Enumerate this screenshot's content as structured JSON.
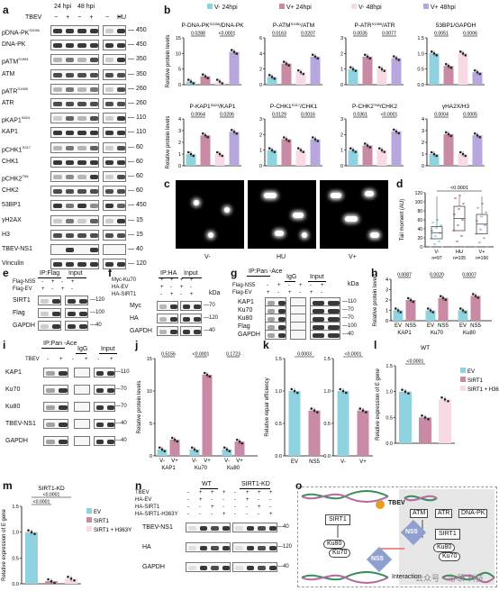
{
  "panels": {
    "a": "a",
    "b": "b",
    "c": "c",
    "d": "d",
    "e": "e",
    "f": "f",
    "g": "g",
    "h": "h",
    "i": "i",
    "j": "j",
    "k": "k",
    "l": "l",
    "m": "m",
    "n": "n",
    "o": "o"
  },
  "panel_a": {
    "header": {
      "tbev": "TBEV",
      "hpi24": "24 hpi",
      "hpi48": "48 hpi",
      "hu": "HU",
      "minus": "−",
      "plus": "+"
    },
    "rows": [
      {
        "name": "pDNA-PK",
        "sup": "S2056",
        "kda": "450"
      },
      {
        "name": "DNA-PK",
        "sup": "",
        "kda": "450"
      },
      {
        "name": "pATM",
        "sup": "S1981",
        "kda": "350"
      },
      {
        "name": "ATM",
        "sup": "",
        "kda": "350"
      },
      {
        "name": "pATR",
        "sup": "S1989",
        "kda": "260"
      },
      {
        "name": "ATR",
        "sup": "",
        "kda": "260"
      },
      {
        "name": "pKAP1",
        "sup": "S824",
        "kda": "110"
      },
      {
        "name": "KAP1",
        "sup": "",
        "kda": "110"
      },
      {
        "name": "pCHK1",
        "sup": "S317",
        "kda": "60"
      },
      {
        "name": "CHK1",
        "sup": "",
        "kda": "60"
      },
      {
        "name": "pCHK2",
        "sup": "T68",
        "kda": "60"
      },
      {
        "name": "CHK2",
        "sup": "",
        "kda": "60"
      },
      {
        "name": "53BP1",
        "sup": "",
        "kda": "450"
      },
      {
        "name": "γH2AX",
        "sup": "",
        "kda": "15"
      },
      {
        "name": "H3",
        "sup": "",
        "kda": "15"
      },
      {
        "name": "TBEV-NS1",
        "sup": "",
        "kda": "40"
      },
      {
        "name": "Vinculin",
        "sup": "",
        "kda": "120"
      }
    ]
  },
  "panel_b": {
    "legend": [
      "V- 24hpi",
      "V+ 24hpi",
      "V- 48hpi",
      "V+ 48hpi"
    ],
    "ylabel": "Relative protein levels",
    "charts": [
      {
        "title": "P-DNA-PK",
        "tsup": "S2056",
        "tsuf": "/DNA-PK",
        "p1": "0.0288",
        "p2": "<0.0001",
        "ymax": 15,
        "ticks": [
          "0",
          "5",
          "10",
          "15"
        ],
        "values": [
          1.0,
          2.7,
          1.0,
          10.5
        ]
      },
      {
        "title": "P-ATM",
        "tsup": "S1981",
        "tsuf": "/ATM",
        "p1": "0.0163",
        "p2": "0.0207",
        "ymax": 6,
        "ticks": [
          "0",
          "2",
          "4",
          "6"
        ],
        "values": [
          1.0,
          2.7,
          1.6,
          3.6
        ]
      },
      {
        "title": "P-ATR",
        "tsup": "S1989",
        "tsuf": "/ATR",
        "p1": "0.0035",
        "p2": "0.0077",
        "ymax": 3,
        "ticks": [
          "0",
          "1",
          "2",
          "3"
        ],
        "values": [
          1.0,
          1.8,
          1.0,
          1.7
        ]
      },
      {
        "title": "53BP1/GAPDH",
        "tsup": "",
        "tsuf": "",
        "p1": "0.0051",
        "p2": "0.0006",
        "ymax": 1.5,
        "ticks": [
          "0.0",
          "0.5",
          "1.0",
          "1.5"
        ],
        "values": [
          1.0,
          0.6,
          1.0,
          0.4
        ]
      },
      {
        "title": "P-KAP1",
        "tsup": "S824",
        "tsuf": "/KAP1",
        "p1": "0.0064",
        "p2": "0.0206",
        "ymax": 4,
        "ticks": [
          "0",
          "1",
          "2",
          "3",
          "4"
        ],
        "values": [
          1.0,
          2.6,
          1.0,
          2.9
        ]
      },
      {
        "title": "P-CHK1",
        "tsup": "S317",
        "tsuf": "/CHK1",
        "p1": "0.0129",
        "p2": "0.0016",
        "ymax": 3,
        "ticks": [
          "0",
          "1",
          "2",
          "3"
        ],
        "values": [
          1.0,
          1.7,
          1.0,
          1.7
        ]
      },
      {
        "title": "P-CHK2",
        "tsup": "T68",
        "tsuf": "/CHK2",
        "p1": "0.0361",
        "p2": "<0.0001",
        "ymax": 3,
        "ticks": [
          "0",
          "1",
          "2",
          "3"
        ],
        "values": [
          1.0,
          1.3,
          1.0,
          2.2
        ]
      },
      {
        "title": "γHA2X/H3",
        "tsup": "",
        "tsuf": "",
        "p1": "0.0004",
        "p2": "0.0005",
        "ymax": 4,
        "ticks": [
          "0",
          "1",
          "2",
          "3",
          "4"
        ],
        "values": [
          1.0,
          2.7,
          1.0,
          2.6
        ]
      }
    ]
  },
  "panel_c": {
    "labels": [
      "V-",
      "HU",
      "V+"
    ]
  },
  "panel_d": {
    "ylabel": "Tail moment (AU)",
    "p": "<0.0001",
    "ticks": [
      "0",
      "20",
      "40",
      "60",
      "80",
      "100",
      "120"
    ],
    "cats": [
      "V-",
      "HU",
      "V+"
    ],
    "ns": [
      "n=97",
      "n=105",
      "n=166"
    ]
  },
  "panel_e": {
    "ip": "IP:Flag",
    "input": "Input",
    "rows": [
      "Flag-NS5",
      "Flag-EV"
    ],
    "signs": [
      [
        "-",
        "+",
        "-",
        "+"
      ],
      [
        "+",
        "-",
        "+",
        "-"
      ]
    ],
    "blots": [
      {
        "name": "SIRT1",
        "kda": "120"
      },
      {
        "name": "Flag",
        "kda": "100"
      },
      {
        "name": "GAPDH",
        "kda": "40"
      }
    ]
  },
  "panel_f": {
    "ip": "IP:HA",
    "input": "Input",
    "kda_label": "kDa",
    "rows": [
      "Myc-Ku70",
      "HA-EV",
      "HA-SIRT1"
    ],
    "signs": [
      [
        "+",
        "+",
        "+",
        "+"
      ],
      [
        "+",
        "-",
        "+",
        "-"
      ],
      [
        "-",
        "+",
        "-",
        "+"
      ]
    ],
    "blots": [
      {
        "name": "Myc",
        "kda": "70"
      },
      {
        "name": "HA",
        "kda": "120"
      },
      {
        "name": "GAPDH",
        "kda": "40"
      }
    ]
  },
  "panel_g": {
    "ip": "IP:Pan -Ace",
    "igg": "IgG",
    "input": "Input",
    "kda_label": "kDa",
    "rows": [
      "Flag-NS5",
      "Flag-EV"
    ],
    "signs": [
      [
        "-",
        "+",
        "-",
        "+",
        "-",
        "+"
      ],
      [
        "+",
        "-",
        "+",
        "-",
        "+",
        "-"
      ]
    ],
    "blots": [
      {
        "name": "KAP1",
        "kda": "110"
      },
      {
        "name": "Ku70",
        "kda": "70"
      },
      {
        "name": "Ku80",
        "kda": "70"
      },
      {
        "name": "Flag",
        "kda": "100"
      },
      {
        "name": "GAPDH",
        "kda": "40"
      }
    ]
  },
  "panel_h": {
    "ylabel": "Relative protein levels",
    "ticks": [
      "0",
      "1",
      "2",
      "3",
      "4"
    ],
    "ymax": 4,
    "groups": [
      {
        "name": "KAP1",
        "p": "0.0087",
        "ev": 1.0,
        "ns5": 2.0
      },
      {
        "name": "Ku70",
        "p": "0.0020",
        "ev": 1.0,
        "ns5": 2.2
      },
      {
        "name": "Ku80",
        "p": "0.0007",
        "ev": 1.0,
        "ns5": 2.4
      }
    ],
    "cond": [
      "EV",
      "NS5"
    ]
  },
  "panel_i": {
    "ip": "IP:Pan -Ace",
    "igg": "IgG",
    "input": "Input",
    "rowlabel": "TBEV",
    "signs": [
      "-",
      "+",
      "-",
      "+",
      "-",
      "+"
    ],
    "blots": [
      {
        "name": "KAP1",
        "kda": "110"
      },
      {
        "name": "Ku70",
        "kda": "70"
      },
      {
        "name": "Ku80",
        "kda": "70"
      },
      {
        "name": "TBEV-NS1",
        "kda": "40"
      },
      {
        "name": "GAPDH",
        "kda": "40"
      }
    ]
  },
  "panel_j": {
    "ylabel": "Relative protein levels",
    "ticks": [
      "0",
      "5",
      "10",
      "15"
    ],
    "ymax": 15,
    "groups": [
      {
        "name": "KAP1",
        "p": "0.5156",
        "vneg": 1.0,
        "vpos": 2.5
      },
      {
        "name": "Ku70",
        "p": "<0.0001",
        "vneg": 1.0,
        "vpos": 12.5
      },
      {
        "name": "Ku80",
        "p": "0.1723",
        "vneg": 1.0,
        "vpos": 2.2
      }
    ],
    "cond": [
      "V-",
      "V+"
    ]
  },
  "panel_k": {
    "ylabel": "Relative repair efficiency",
    "ticks": [
      "0.0",
      "0.5",
      "1.0",
      "1.5"
    ],
    "ymax": 1.5,
    "left": {
      "p": "0.0003",
      "cats": [
        "EV",
        "NS5"
      ],
      "values": [
        1.0,
        0.7
      ]
    },
    "right": {
      "p": "<0.0001",
      "cats": [
        "V-",
        "V+"
      ],
      "values": [
        1.0,
        0.7
      ]
    }
  },
  "panel_l": {
    "title": "WT",
    "ylabel": "Relative expression of E gene",
    "p": "<0.0001",
    "ticks": [
      "0.0",
      "0.5",
      "1.0",
      "1.5"
    ],
    "ymax": 1.5,
    "values": [
      1.0,
      0.5,
      0.85
    ],
    "legend": [
      "EV",
      "SIRT1",
      "SIRT1 + H363Y"
    ]
  },
  "panel_m": {
    "title": "SIRT1-KD",
    "ylabel": "Relative expression of E gene",
    "p1": "<0.0001",
    "p2": "<0.0001",
    "ticks": [
      "0.0",
      "0.5",
      "1.0",
      "1.5"
    ],
    "ymax": 1.5,
    "values": [
      1.0,
      0.05,
      0.1
    ],
    "legend": [
      "EV",
      "SIRT1",
      "SIRT1 + H363Y"
    ]
  },
  "panel_n": {
    "wt": "WT",
    "kd": "SIRT1-KD",
    "rows": [
      "TBEV",
      "HA-EV",
      "HA-SIRT1",
      "HA-SIRT1-H363Y"
    ],
    "signs": [
      [
        "-",
        "+",
        "+",
        "+",
        "-",
        "+",
        "+",
        "+"
      ],
      [
        "-",
        "+",
        "-",
        "-",
        "-",
        "+",
        "-",
        "-"
      ],
      [
        "-",
        "-",
        "+",
        "-",
        "-",
        "-",
        "+",
        "-"
      ],
      [
        "-",
        "-",
        "-",
        "+",
        "-",
        "-",
        "-",
        "+"
      ]
    ],
    "blots": [
      {
        "name": "TBEV-NS1",
        "kda": "40"
      },
      {
        "name": "HA",
        "kda": "120"
      },
      {
        "name": "GAPDH",
        "kda": "40"
      }
    ]
  },
  "panel_o": {
    "tbev": "TBEV",
    "atm": "ATM",
    "atr": "ATR",
    "dnapk": "DNA-PK",
    "ns5": "NS5",
    "sirt1a": "SIRT1",
    "sirt1b": "SIRT1",
    "ku80a": "Ku80",
    "ku70a": "Ku70",
    "ku80b": "Ku80",
    "ku70b": "Ku70",
    "interaction": "Interaction",
    "watermark": "公众号 · 北 研 科技"
  },
  "colors": {
    "vneg24": "#8fd3e0",
    "vpos24": "#c98aa6",
    "vneg48": "#f8d9e6",
    "vpos48": "#b7a7dc",
    "ev": "#8fd3e0",
    "ns5": "#c98aa6",
    "sirt1": "#c98aa6",
    "h363y": "#f8d9e6"
  }
}
